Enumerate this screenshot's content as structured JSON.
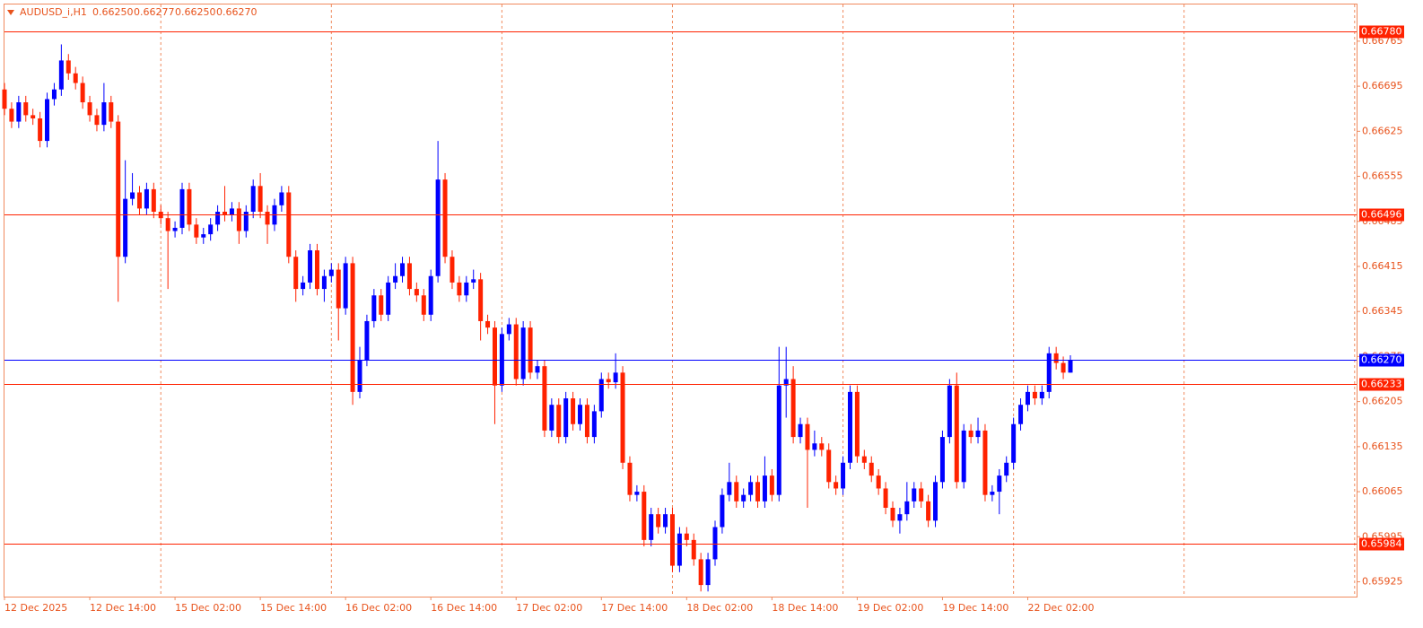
{
  "chart_data": {
    "type": "candlestick",
    "symbol": "AUDUSD_i,H1",
    "header_values": [
      {
        "value": 0.6625,
        "label": "0.66250"
      },
      {
        "value": 0.66277,
        "label": "0.66277"
      },
      {
        "value": 0.6625,
        "label": "0.66250"
      },
      {
        "value": 0.6627,
        "label": "0.66270"
      }
    ],
    "categories": [
      "12 Dec 2025",
      null,
      null,
      null,
      null,
      null,
      null,
      null,
      null,
      null,
      null,
      null,
      "12 Dec 14:00",
      null,
      null,
      null,
      null,
      null,
      null,
      null,
      null,
      null,
      null,
      null,
      "15 Dec 02:00",
      null,
      null,
      null,
      null,
      null,
      null,
      null,
      null,
      null,
      null,
      null,
      "15 Dec 14:00",
      null,
      null,
      null,
      null,
      null,
      null,
      null,
      null,
      null,
      null,
      null,
      "16 Dec 02:00",
      null,
      null,
      null,
      null,
      null,
      null,
      null,
      null,
      null,
      null,
      null,
      "16 Dec 14:00",
      null,
      null,
      null,
      null,
      null,
      null,
      null,
      null,
      null,
      null,
      null,
      "17 Dec 02:00",
      null,
      null,
      null,
      null,
      null,
      null,
      null,
      null,
      null,
      null,
      null,
      "17 Dec 14:00",
      null,
      null,
      null,
      null,
      null,
      null,
      null,
      null,
      null,
      null,
      null,
      "18 Dec 02:00",
      null,
      null,
      null,
      null,
      null,
      null,
      null,
      null,
      null,
      null,
      null,
      "18 Dec 14:00",
      null,
      null,
      null,
      null,
      null,
      null,
      null,
      null,
      null,
      null,
      null,
      "19 Dec 02:00",
      null,
      null,
      null,
      null,
      null,
      null,
      null,
      null,
      null,
      null,
      null,
      "19 Dec 14:00",
      null,
      null,
      null,
      null,
      null,
      null,
      null,
      null,
      null,
      null,
      null,
      "22 Dec 02:00",
      null,
      null,
      null,
      null,
      null,
      null
    ],
    "open": [
      0.6669,
      0.6666,
      0.6664,
      0.6667,
      0.6665,
      0.66645,
      0.6661,
      0.66675,
      0.6669,
      0.66735,
      0.66715,
      0.667,
      0.6667,
      0.6665,
      0.66635,
      0.6667,
      0.6664,
      0.6643,
      0.6652,
      0.6653,
      0.66505,
      0.66535,
      0.665,
      0.6649,
      0.6647,
      0.66475,
      0.66535,
      0.6648,
      0.6646,
      0.66465,
      0.6648,
      0.665,
      0.66495,
      0.66505,
      0.6647,
      0.665,
      0.6654,
      0.665,
      0.6648,
      0.6651,
      0.6653,
      0.6643,
      0.6638,
      0.6639,
      0.6644,
      0.6638,
      0.664,
      0.6641,
      0.6635,
      0.6642,
      0.6622,
      0.6627,
      0.6633,
      0.6637,
      0.6634,
      0.6639,
      0.664,
      0.6642,
      0.6638,
      0.6637,
      0.6634,
      0.664,
      0.6655,
      0.6643,
      0.6639,
      0.6637,
      0.6639,
      0.66395,
      0.6633,
      0.6632,
      0.6623,
      0.6631,
      0.66325,
      0.6624,
      0.6632,
      0.6625,
      0.6626,
      0.6616,
      0.662,
      0.6615,
      0.6621,
      0.6617,
      0.662,
      0.6615,
      0.6619,
      0.6624,
      0.66235,
      0.6625,
      0.6611,
      0.6606,
      0.66065,
      0.6599,
      0.6603,
      0.6601,
      0.6603,
      0.6595,
      0.66,
      0.6599,
      0.6596,
      0.6592,
      0.6596,
      0.6601,
      0.6606,
      0.6608,
      0.6605,
      0.6606,
      0.6608,
      0.6605,
      0.6609,
      0.6606,
      0.6623,
      0.6624,
      0.6615,
      0.6617,
      0.6613,
      0.6614,
      0.6613,
      0.6608,
      0.6607,
      0.6611,
      0.6622,
      0.6612,
      0.6611,
      0.6609,
      0.6607,
      0.6604,
      0.6602,
      0.6603,
      0.6605,
      0.6607,
      0.6605,
      0.6602,
      0.6608,
      0.6615,
      0.6623,
      0.6608,
      0.6616,
      0.6615,
      0.6616,
      0.6606,
      0.66065,
      0.6609,
      0.6611,
      0.6617,
      0.662,
      0.6622,
      0.6621,
      0.6622,
      0.6628,
      0.66265,
      0.6625
    ],
    "high": [
      0.667,
      0.6667,
      0.6668,
      0.6668,
      0.6666,
      0.66655,
      0.66685,
      0.667,
      0.6676,
      0.66745,
      0.66725,
      0.6671,
      0.6668,
      0.6666,
      0.667,
      0.6668,
      0.6665,
      0.6658,
      0.6656,
      0.6654,
      0.66545,
      0.66545,
      0.6651,
      0.665,
      0.66485,
      0.66545,
      0.66545,
      0.6649,
      0.66475,
      0.6649,
      0.6651,
      0.6654,
      0.66515,
      0.66515,
      0.6651,
      0.6655,
      0.6656,
      0.6651,
      0.6652,
      0.6654,
      0.6654,
      0.6644,
      0.664,
      0.6645,
      0.6645,
      0.6641,
      0.6642,
      0.6642,
      0.6643,
      0.6643,
      0.6629,
      0.6634,
      0.6638,
      0.6638,
      0.664,
      0.6642,
      0.6643,
      0.6643,
      0.6639,
      0.6638,
      0.6641,
      0.6661,
      0.6656,
      0.6644,
      0.664,
      0.664,
      0.6641,
      0.66405,
      0.6634,
      0.6633,
      0.6632,
      0.66335,
      0.66335,
      0.6633,
      0.6633,
      0.6627,
      0.6627,
      0.6621,
      0.6621,
      0.6622,
      0.6622,
      0.6621,
      0.6621,
      0.662,
      0.6625,
      0.6625,
      0.6628,
      0.6626,
      0.6612,
      0.66075,
      0.66075,
      0.6604,
      0.6604,
      0.6604,
      0.6604,
      0.6601,
      0.6601,
      0.66,
      0.6597,
      0.6597,
      0.6602,
      0.6607,
      0.6611,
      0.6609,
      0.6607,
      0.6609,
      0.6609,
      0.6612,
      0.661,
      0.6629,
      0.6629,
      0.6626,
      0.6618,
      0.6618,
      0.6616,
      0.6615,
      0.6614,
      0.6609,
      0.6612,
      0.6623,
      0.6623,
      0.6613,
      0.6612,
      0.661,
      0.6608,
      0.6605,
      0.6604,
      0.6608,
      0.6608,
      0.6608,
      0.6606,
      0.6609,
      0.6616,
      0.6624,
      0.6625,
      0.6617,
      0.6617,
      0.6618,
      0.6617,
      0.66075,
      0.661,
      0.6612,
      0.6618,
      0.6621,
      0.6623,
      0.6623,
      0.6623,
      0.6629,
      0.6629,
      0.66275,
      0.66277
    ],
    "low": [
      0.6665,
      0.6663,
      0.6663,
      0.6664,
      0.66635,
      0.666,
      0.666,
      0.66665,
      0.6668,
      0.66705,
      0.6669,
      0.6666,
      0.6664,
      0.66625,
      0.66625,
      0.6663,
      0.6636,
      0.6642,
      0.6651,
      0.66495,
      0.66495,
      0.6649,
      0.6648,
      0.6638,
      0.6646,
      0.66465,
      0.6647,
      0.6645,
      0.6645,
      0.66455,
      0.6647,
      0.66485,
      0.66485,
      0.6645,
      0.6646,
      0.6649,
      0.6649,
      0.6645,
      0.6647,
      0.665,
      0.6642,
      0.6636,
      0.6637,
      0.6638,
      0.6637,
      0.6636,
      0.6639,
      0.663,
      0.6634,
      0.662,
      0.6621,
      0.6626,
      0.6632,
      0.6633,
      0.6633,
      0.6638,
      0.6639,
      0.6637,
      0.6636,
      0.6633,
      0.6633,
      0.6639,
      0.6642,
      0.6638,
      0.6636,
      0.6636,
      0.6638,
      0.663,
      0.6631,
      0.6617,
      0.6622,
      0.663,
      0.6623,
      0.6623,
      0.6624,
      0.6624,
      0.6615,
      0.6615,
      0.6614,
      0.6614,
      0.6616,
      0.6616,
      0.6614,
      0.6614,
      0.6618,
      0.66225,
      0.66225,
      0.661,
      0.6605,
      0.6605,
      0.6598,
      0.6598,
      0.66,
      0.66,
      0.6594,
      0.6594,
      0.6598,
      0.6595,
      0.6591,
      0.6591,
      0.6595,
      0.66,
      0.6605,
      0.6604,
      0.6604,
      0.6605,
      0.6604,
      0.6604,
      0.6605,
      0.6605,
      0.6618,
      0.6614,
      0.6614,
      0.6604,
      0.6612,
      0.6612,
      0.6607,
      0.6606,
      0.6606,
      0.661,
      0.6611,
      0.661,
      0.6608,
      0.6606,
      0.6603,
      0.6601,
      0.66,
      0.6602,
      0.6604,
      0.6604,
      0.6601,
      0.6601,
      0.6607,
      0.6614,
      0.6607,
      0.6607,
      0.6614,
      0.6614,
      0.6605,
      0.6605,
      0.6603,
      0.6608,
      0.661,
      0.6616,
      0.6619,
      0.662,
      0.662,
      0.6621,
      0.66255,
      0.6624,
      0.6625
    ],
    "close": [
      0.6666,
      0.6664,
      0.6667,
      0.6665,
      0.66645,
      0.6661,
      0.66675,
      0.6669,
      0.66735,
      0.66715,
      0.667,
      0.6667,
      0.6665,
      0.66635,
      0.6667,
      0.6664,
      0.6643,
      0.6652,
      0.6653,
      0.66505,
      0.66535,
      0.665,
      0.6649,
      0.6647,
      0.66475,
      0.66535,
      0.6648,
      0.6646,
      0.66465,
      0.6648,
      0.665,
      0.66495,
      0.66505,
      0.6647,
      0.665,
      0.6654,
      0.665,
      0.6648,
      0.6651,
      0.6653,
      0.6643,
      0.6638,
      0.6639,
      0.6644,
      0.6638,
      0.664,
      0.6641,
      0.6635,
      0.6642,
      0.6622,
      0.6627,
      0.6633,
      0.6637,
      0.6634,
      0.6639,
      0.664,
      0.6642,
      0.6638,
      0.6637,
      0.6634,
      0.664,
      0.6655,
      0.6643,
      0.6639,
      0.6637,
      0.6639,
      0.66395,
      0.6633,
      0.6632,
      0.6623,
      0.6631,
      0.66325,
      0.6624,
      0.6632,
      0.6625,
      0.6626,
      0.6616,
      0.662,
      0.6615,
      0.6621,
      0.6617,
      0.662,
      0.6615,
      0.6619,
      0.6624,
      0.66235,
      0.6625,
      0.6611,
      0.6606,
      0.66065,
      0.6599,
      0.6603,
      0.6601,
      0.6603,
      0.6595,
      0.66,
      0.6599,
      0.6596,
      0.6592,
      0.6596,
      0.6601,
      0.6606,
      0.6608,
      0.6605,
      0.6606,
      0.6608,
      0.6605,
      0.6609,
      0.6606,
      0.6623,
      0.6624,
      0.6615,
      0.6617,
      0.6613,
      0.6614,
      0.6613,
      0.6608,
      0.6607,
      0.6611,
      0.6622,
      0.6612,
      0.6611,
      0.6609,
      0.6607,
      0.6604,
      0.6602,
      0.6603,
      0.6605,
      0.6607,
      0.6605,
      0.6602,
      0.6608,
      0.6615,
      0.6623,
      0.6608,
      0.6616,
      0.6615,
      0.6616,
      0.6606,
      0.66065,
      0.6609,
      0.6611,
      0.6617,
      0.662,
      0.6622,
      0.6621,
      0.6622,
      0.6628,
      0.66265,
      0.6625,
      0.6627
    ],
    "up_color": "#0000ff",
    "down_color": "#ff2200",
    "ylim": [
      0.65902,
      0.66822
    ],
    "yticks": [
      0.66765,
      0.66695,
      0.66625,
      0.66555,
      0.66485,
      0.66415,
      0.66345,
      0.66275,
      0.66205,
      0.66135,
      0.66065,
      0.65995,
      0.65925
    ],
    "levels": [
      {
        "value": 0.6678,
        "label": "0.66780",
        "color": "#ff2200"
      },
      {
        "value": 0.66496,
        "label": "0.66496",
        "color": "#ff2200"
      },
      {
        "value": 0.6627,
        "label": "0.66270",
        "color": "#0000ff"
      },
      {
        "value": 0.66233,
        "label": "0.66233",
        "color": "#ff2200"
      },
      {
        "value": 0.65984,
        "label": "0.65984",
        "color": "#ff2200"
      }
    ]
  }
}
